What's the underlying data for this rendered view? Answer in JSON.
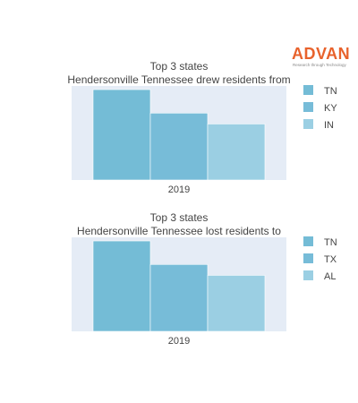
{
  "brand": {
    "name": "ADVAN",
    "tagline": "Research through Technology",
    "color": "#e8622c"
  },
  "chart_data": [
    {
      "type": "bar",
      "title": "Top 3 states",
      "subtitle": "Hendersonville Tennessee drew residents from",
      "categories": [
        "2019"
      ],
      "series": [
        {
          "name": "TN",
          "values": [
            1.0
          ],
          "color": "#74bcd6"
        },
        {
          "name": "KY",
          "values": [
            0.74
          ],
          "color": "#77bcd8"
        },
        {
          "name": "IN",
          "values": [
            0.62
          ],
          "color": "#9bcfe3"
        }
      ],
      "ylim": [
        0,
        1.04
      ],
      "grid": false,
      "y_tick_labels": false,
      "legend_position": "right",
      "plot_background": "#e5ecf6"
    },
    {
      "type": "bar",
      "title": "Top 3 states",
      "subtitle": "Hendersonville Tennessee lost residents to",
      "categories": [
        "2019"
      ],
      "series": [
        {
          "name": "TN",
          "values": [
            1.0
          ],
          "color": "#74bcd6"
        },
        {
          "name": "TX",
          "values": [
            0.74
          ],
          "color": "#77bcd8"
        },
        {
          "name": "AL",
          "values": [
            0.62
          ],
          "color": "#9bcfe3"
        }
      ],
      "ylim": [
        0,
        1.04
      ],
      "grid": false,
      "y_tick_labels": false,
      "legend_position": "right",
      "plot_background": "#e5ecf6"
    }
  ]
}
